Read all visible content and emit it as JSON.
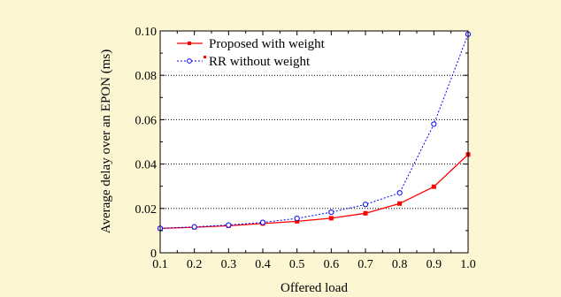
{
  "chart_data": {
    "type": "line",
    "title": "",
    "xlabel": "Offered load",
    "ylabel": "Average delay over an EPON (ms)",
    "x": [
      0.1,
      0.2,
      0.3,
      0.4,
      0.5,
      0.6,
      0.7,
      0.8,
      0.9,
      1.0
    ],
    "xlim": [
      0.1,
      1.0
    ],
    "ylim": [
      0,
      0.1
    ],
    "x_ticks": [
      "0.1",
      "0.2",
      "0.3",
      "0.4",
      "0.5",
      "0.6",
      "0.7",
      "0.8",
      "0.9",
      "1.0"
    ],
    "y_ticks": [
      "0",
      "0.02",
      "0.04",
      "0.06",
      "0.08",
      "0.10"
    ],
    "y_tick_values": [
      0,
      0.02,
      0.04,
      0.06,
      0.08,
      0.1
    ],
    "grid": "horizontal dotted",
    "legend_position": "top-left",
    "series": [
      {
        "name": "Proposed with weight",
        "values": [
          0.011,
          0.0115,
          0.0122,
          0.0132,
          0.0142,
          0.0156,
          0.0178,
          0.0222,
          0.0298,
          0.0443
        ],
        "color": "#ff0000",
        "line_style": "solid",
        "marker": "filled-square"
      },
      {
        "name": "RR without weight",
        "values": [
          0.011,
          0.0117,
          0.0125,
          0.0137,
          0.0155,
          0.0183,
          0.0218,
          0.027,
          0.058,
          0.0985
        ],
        "color": "#0000ff",
        "line_style": "dotted",
        "marker": "open-circle"
      }
    ]
  }
}
